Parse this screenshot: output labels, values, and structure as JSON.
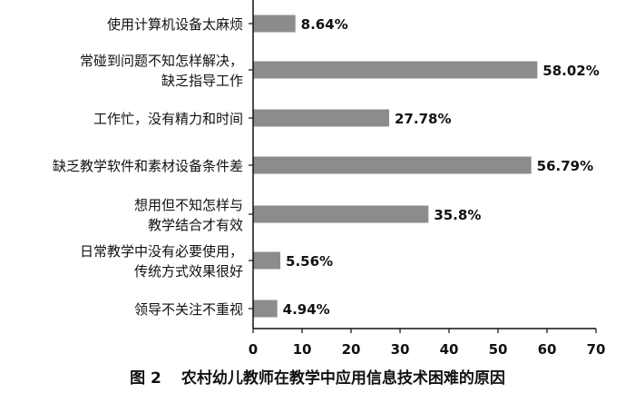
{
  "chart_data": {
    "type": "bar",
    "orientation": "horizontal",
    "categories": [
      [
        "使用计算机设备太麻烦"
      ],
      [
        "常碰到问题不知怎样解决，",
        "缺乏指导工作"
      ],
      [
        "工作忙，没有精力和时间"
      ],
      [
        "缺乏教学软件和素材设备条件差"
      ],
      [
        "想用但不知怎样与",
        "教学结合才有效"
      ],
      [
        "日常教学中没有必要使用，",
        "传统方式效果很好"
      ],
      [
        "领导不关注不重视"
      ]
    ],
    "values": [
      8.64,
      58.02,
      27.78,
      56.79,
      35.8,
      5.56,
      4.94
    ],
    "value_labels": [
      "8.64%",
      "58.02%",
      "27.78%",
      "56.79%",
      "35.8%",
      "5.56%",
      "4.94%"
    ],
    "xlim": [
      0,
      70
    ],
    "xticks": [
      "0",
      "10",
      "20",
      "30",
      "40",
      "50",
      "60",
      "70"
    ],
    "grid": false,
    "bar_color": "#8c8c8c"
  },
  "caption": {
    "figure_number": "图 2",
    "title": "农村幼儿教师在教学中应用信息技术困难的原因"
  }
}
